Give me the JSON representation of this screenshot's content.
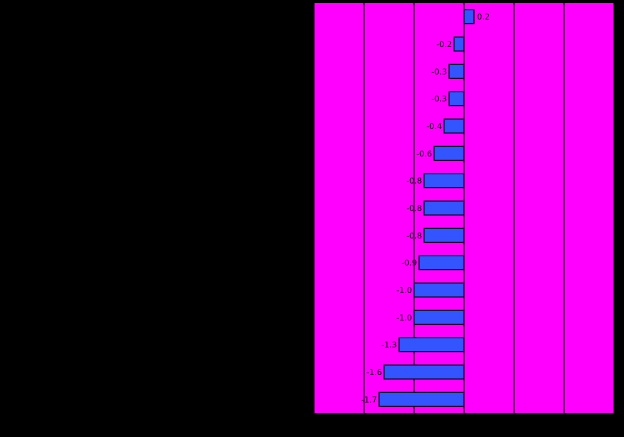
{
  "chart_data": {
    "type": "bar",
    "orientation": "horizontal",
    "categories": [
      "",
      "",
      "",
      "",
      "",
      "",
      "",
      "",
      "",
      "",
      "",
      "",
      "",
      "",
      ""
    ],
    "values": [
      0.2,
      -0.2,
      -0.3,
      -0.3,
      -0.4,
      -0.6,
      -0.8,
      -0.8,
      -0.8,
      -0.9,
      -1.0,
      -1.0,
      -1.3,
      -1.6,
      -1.7
    ],
    "data_labels": [
      "0.2",
      "-0.2",
      "-0.3",
      "-0.3",
      "-0.4",
      "-0.6",
      "-0.8",
      "-0.8",
      "-0.8",
      "-0.9",
      "-1.0",
      "-1.0",
      "-1.3",
      "-1.6",
      "-1.7"
    ],
    "xlim": [
      -3.0,
      3.0
    ],
    "xticks": [
      -3,
      -2,
      -1,
      0,
      1,
      2,
      3
    ],
    "grid": true,
    "colors": {
      "background": "#000000",
      "plot_area": "#FF00FF",
      "bar_fill": "#3355FF",
      "bar_stroke": "#000000",
      "gridline": "#000000"
    }
  }
}
